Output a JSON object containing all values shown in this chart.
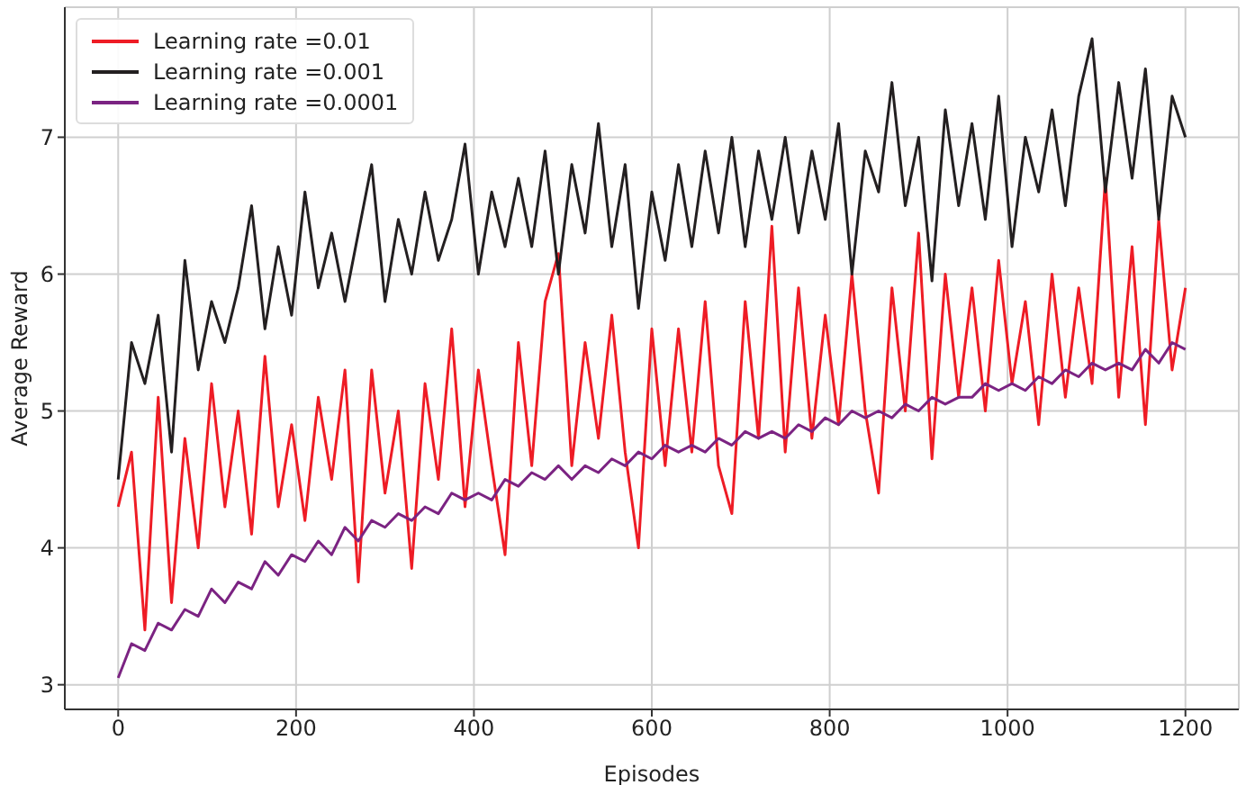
{
  "chart_data": {
    "type": "line",
    "xlabel": "Episodes",
    "ylabel": "Average Reward",
    "x": [
      0,
      15,
      30,
      45,
      60,
      75,
      90,
      105,
      120,
      135,
      150,
      165,
      180,
      195,
      210,
      225,
      240,
      255,
      270,
      285,
      300,
      315,
      330,
      345,
      360,
      375,
      390,
      405,
      420,
      435,
      450,
      465,
      480,
      495,
      510,
      525,
      540,
      555,
      570,
      585,
      600,
      615,
      630,
      645,
      660,
      675,
      690,
      705,
      720,
      735,
      750,
      765,
      780,
      795,
      810,
      825,
      840,
      855,
      870,
      885,
      900,
      915,
      930,
      945,
      960,
      975,
      990,
      1005,
      1020,
      1035,
      1050,
      1065,
      1080,
      1095,
      1110,
      1125,
      1140,
      1155,
      1170,
      1185,
      1200
    ],
    "series": [
      {
        "name": "Learning rate =0.01",
        "color": "#ee1c25",
        "values": [
          4.3,
          4.7,
          3.4,
          5.1,
          3.6,
          4.8,
          4.0,
          5.2,
          4.3,
          5.0,
          4.1,
          5.4,
          4.3,
          4.9,
          4.2,
          5.1,
          4.5,
          5.3,
          3.75,
          5.3,
          4.4,
          5.0,
          3.85,
          5.2,
          4.5,
          5.6,
          4.3,
          5.3,
          4.6,
          3.95,
          5.5,
          4.6,
          5.8,
          6.15,
          4.6,
          5.5,
          4.8,
          5.7,
          4.7,
          4.0,
          5.6,
          4.6,
          5.6,
          4.7,
          5.8,
          4.6,
          4.25,
          5.8,
          4.8,
          6.35,
          4.7,
          5.9,
          4.8,
          5.7,
          4.9,
          6.0,
          5.0,
          4.4,
          5.9,
          5.0,
          6.3,
          4.65,
          6.0,
          5.1,
          5.9,
          5.0,
          6.1,
          5.2,
          5.8,
          4.9,
          6.0,
          5.1,
          5.9,
          5.2,
          6.7,
          5.1,
          6.2,
          4.9,
          6.4,
          5.3,
          5.9
        ]
      },
      {
        "name": "Learning rate =0.001",
        "color": "#231f20",
        "values": [
          4.5,
          5.5,
          5.2,
          5.7,
          4.7,
          6.1,
          5.3,
          5.8,
          5.5,
          5.9,
          6.5,
          5.6,
          6.2,
          5.7,
          6.6,
          5.9,
          6.3,
          5.8,
          6.3,
          6.8,
          5.8,
          6.4,
          6.0,
          6.6,
          6.1,
          6.4,
          6.95,
          6.0,
          6.6,
          6.2,
          6.7,
          6.2,
          6.9,
          6.0,
          6.8,
          6.3,
          7.1,
          6.2,
          6.8,
          5.75,
          6.6,
          6.1,
          6.8,
          6.2,
          6.9,
          6.3,
          7.0,
          6.2,
          6.9,
          6.4,
          7.0,
          6.3,
          6.9,
          6.4,
          7.1,
          6.0,
          6.9,
          6.6,
          7.4,
          6.5,
          7.0,
          5.95,
          7.2,
          6.5,
          7.1,
          6.4,
          7.3,
          6.2,
          7.0,
          6.6,
          7.2,
          6.5,
          7.3,
          7.72,
          6.6,
          7.4,
          6.7,
          7.5,
          6.4,
          7.3,
          7.0
        ]
      },
      {
        "name": "Learning rate =0.0001",
        "color": "#7b2382",
        "values": [
          3.05,
          3.3,
          3.25,
          3.45,
          3.4,
          3.55,
          3.5,
          3.7,
          3.6,
          3.75,
          3.7,
          3.9,
          3.8,
          3.95,
          3.9,
          4.05,
          3.95,
          4.15,
          4.05,
          4.2,
          4.15,
          4.25,
          4.2,
          4.3,
          4.25,
          4.4,
          4.35,
          4.4,
          4.35,
          4.5,
          4.45,
          4.55,
          4.5,
          4.6,
          4.5,
          4.6,
          4.55,
          4.65,
          4.6,
          4.7,
          4.65,
          4.75,
          4.7,
          4.75,
          4.7,
          4.8,
          4.75,
          4.85,
          4.8,
          4.85,
          4.8,
          4.9,
          4.85,
          4.95,
          4.9,
          5.0,
          4.95,
          5.0,
          4.95,
          5.05,
          5.0,
          5.1,
          5.05,
          5.1,
          5.1,
          5.2,
          5.15,
          5.2,
          5.15,
          5.25,
          5.2,
          5.3,
          5.25,
          5.35,
          5.3,
          5.35,
          5.3,
          5.45,
          5.35,
          5.5,
          5.45
        ]
      }
    ],
    "xlim": [
      -60,
      1260
    ],
    "xticks": [
      0,
      200,
      400,
      600,
      800,
      1000,
      1200
    ],
    "ylim": [
      2.82,
      7.95
    ],
    "yticks": [
      3,
      4,
      5,
      6,
      7
    ],
    "grid": true,
    "legend": "top left",
    "marker": "none",
    "line_style": "solid"
  }
}
